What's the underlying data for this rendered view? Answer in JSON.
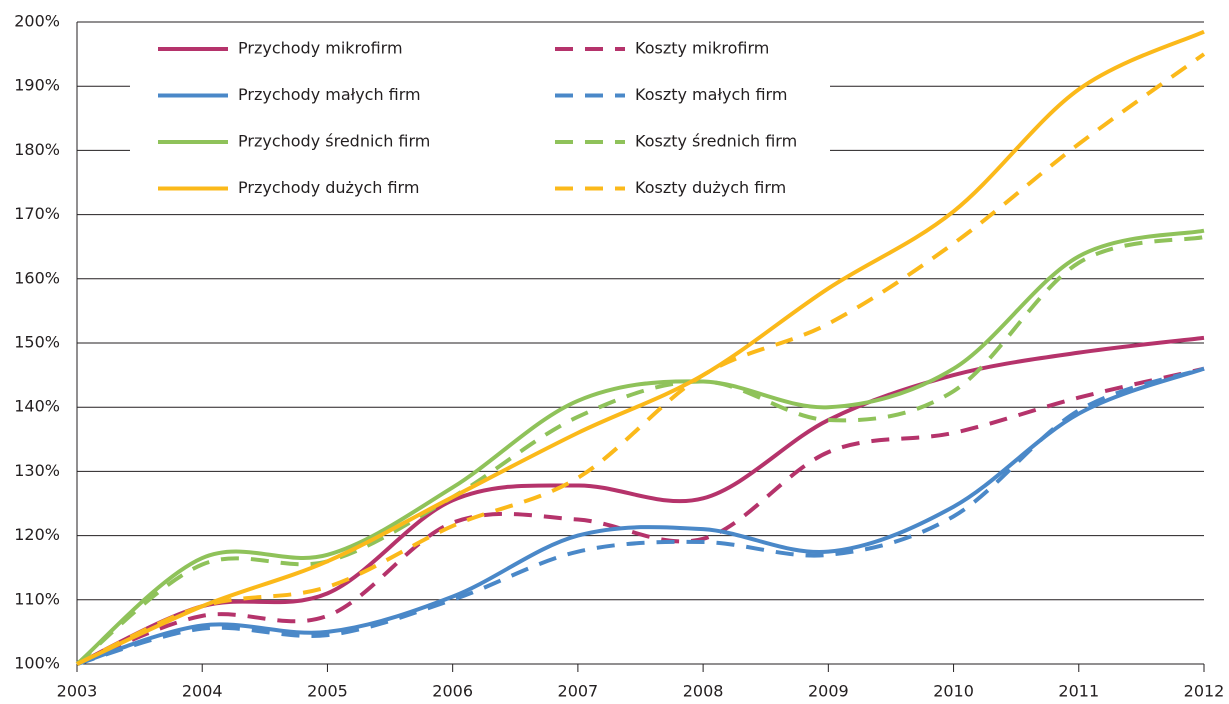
{
  "chart_data": {
    "type": "line",
    "x": [
      2003,
      2004,
      2005,
      2006,
      2007,
      2008,
      2009,
      2010,
      2011,
      2012
    ],
    "xlim": [
      2003,
      2012
    ],
    "xticks": [
      2003,
      2004,
      2005,
      2006,
      2007,
      2008,
      2009,
      2010,
      2011,
      2012
    ],
    "ylim": [
      100,
      200
    ],
    "yticks": [
      {
        "value": 100,
        "label": "100%"
      },
      {
        "value": 110,
        "label": "110%"
      },
      {
        "value": 120,
        "label": "120%"
      },
      {
        "value": 130,
        "label": "130%"
      },
      {
        "value": 140,
        "label": "140%"
      },
      {
        "value": 150,
        "label": "150%"
      },
      {
        "value": 160,
        "label": "160%"
      },
      {
        "value": 170,
        "label": "170%"
      },
      {
        "value": 180,
        "label": "180%"
      },
      {
        "value": 190,
        "label": "190%"
      },
      {
        "value": 200,
        "label": "200%"
      }
    ],
    "grid": true,
    "legend": "upper left",
    "series": [
      {
        "name": "Przychody mikrofirm",
        "color": "#b5336b",
        "dashed": false,
        "values": [
          100,
          109,
          111,
          125.5,
          127.8,
          125.8,
          138,
          145,
          148.5,
          150.8
        ]
      },
      {
        "name": "Koszty mikrofirm",
        "color": "#b5336b",
        "dashed": true,
        "values": [
          100,
          107.5,
          107.5,
          122,
          122.5,
          119.5,
          133,
          136,
          141.5,
          146
        ]
      },
      {
        "name": "Przychody małych firm",
        "color": "#4a88c8",
        "dashed": false,
        "values": [
          100,
          106,
          105,
          110.5,
          120,
          121,
          117.5,
          124.5,
          139,
          146
        ]
      },
      {
        "name": "Koszty małych firm",
        "color": "#4a88c8",
        "dashed": true,
        "values": [
          100,
          105.5,
          104.5,
          110,
          117.5,
          119,
          117,
          123,
          139.5,
          146
        ]
      },
      {
        "name": "Przychody średnich firm",
        "color": "#8fc25a",
        "dashed": false,
        "values": [
          100,
          116.5,
          117,
          127.5,
          141,
          144,
          140,
          146,
          163.5,
          167.5
        ]
      },
      {
        "name": "Koszty średnich firm",
        "color": "#8fc25a",
        "dashed": true,
        "values": [
          100,
          115.5,
          116,
          126,
          138.5,
          144,
          138,
          142.5,
          162.5,
          166.5
        ]
      },
      {
        "name": "Przychody dużych firm",
        "color": "#fbb91a",
        "dashed": false,
        "values": [
          100,
          109,
          116,
          126,
          136,
          145,
          158.5,
          170.5,
          189.5,
          198.5
        ]
      },
      {
        "name": "Koszty dużych firm",
        "color": "#fbb91a",
        "dashed": true,
        "values": [
          100,
          109,
          112,
          121.5,
          129,
          145,
          153,
          165.5,
          181,
          195
        ]
      }
    ]
  }
}
